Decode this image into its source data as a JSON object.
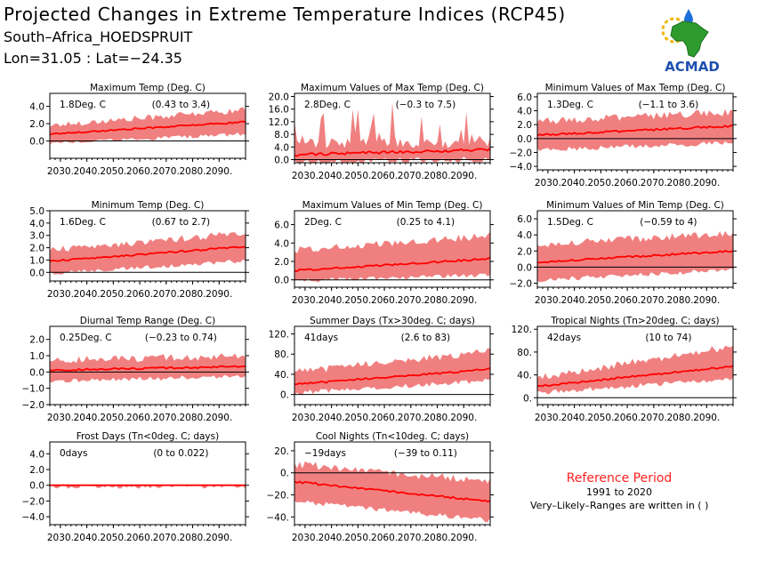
{
  "header": {
    "title": "Projected Changes in Extreme Temperature Indices (RCP45)",
    "location": "South–Africa_HOEDSPRUIT",
    "coordinates": "Lon=31.05 : Lat=−24.35"
  },
  "logo": {
    "name": "ACMAD",
    "icon": "africa-map-with-sun-and-raindrop"
  },
  "reference": {
    "title": "Reference Period",
    "years": "1991 to 2020",
    "note": "Very–Likely–Ranges are written in ( )"
  },
  "colors": {
    "band": "#f08080",
    "line": "#ff0000",
    "title_red": "#ff2020",
    "axis": "#000000"
  },
  "chart_data": [
    {
      "type": "line",
      "title": "Maximum Temp (Deg. C)",
      "value_label": "1.8Deg. C",
      "range_label": "(0.43 to 3.4)",
      "x_ticks": [
        "2030.",
        "2040.",
        "2050.",
        "2060.",
        "2070.",
        "2080.",
        "2090."
      ],
      "y_ticks": [
        "0.0",
        "2.0",
        "4.0"
      ],
      "ylim": [
        -2.0,
        5.5
      ],
      "x_range": [
        2026,
        2100
      ],
      "series": [
        {
          "type": "band",
          "x": [
            2026,
            2100
          ],
          "lower": [
            -0.2,
            0.9
          ],
          "upper": [
            1.8,
            3.6
          ]
        },
        {
          "type": "median",
          "x": [
            2026,
            2100
          ],
          "values": [
            0.8,
            2.2
          ]
        }
      ]
    },
    {
      "type": "line",
      "title": "Maximum Values of Max Temp (Deg. C)",
      "value_label": "2.8Deg. C",
      "range_label": "(−0.3 to 7.5)",
      "x_ticks": [
        "2030.",
        "2040.",
        "2050.",
        "2060.",
        "2070.",
        "2080.",
        "2090."
      ],
      "y_ticks": [
        "0.0",
        "4.0",
        "8.0",
        "12.0",
        "16.0",
        "20.0"
      ],
      "ylim": [
        -1.0,
        21.0
      ],
      "x_range": [
        2026,
        2100
      ],
      "series": [
        {
          "type": "band",
          "x": [
            2026,
            2100
          ],
          "lower": [
            -0.8,
            0.5
          ],
          "upper": [
            5.0,
            5.5
          ]
        },
        {
          "type": "median",
          "x": [
            2026,
            2100
          ],
          "values": [
            1.5,
            3.2
          ]
        }
      ]
    },
    {
      "type": "line",
      "title": "Minimum Values of Max Temp (Deg. C)",
      "value_label": "1.3Deg. C",
      "range_label": "(−1.1 to 3.6)",
      "x_ticks": [
        "2030.",
        "2040.",
        "2050.",
        "2060.",
        "2070.",
        "2080.",
        "2090."
      ],
      "y_ticks": [
        "−4.0",
        "−2.0",
        "0.0",
        "2.0",
        "4.0",
        "6.0"
      ],
      "ylim": [
        -4.5,
        6.5
      ],
      "x_range": [
        2026,
        2100
      ],
      "series": [
        {
          "type": "band",
          "x": [
            2026,
            2100
          ],
          "lower": [
            -1.5,
            -0.5
          ],
          "upper": [
            2.5,
            3.8
          ]
        },
        {
          "type": "median",
          "x": [
            2026,
            2100
          ],
          "values": [
            0.5,
            1.8
          ]
        }
      ]
    },
    {
      "type": "line",
      "title": "Minimum Temp (Deg. C)",
      "value_label": "1.6Deg. C",
      "range_label": "(0.67 to 2.7)",
      "x_ticks": [
        "2030.",
        "2040.",
        "2050.",
        "2060.",
        "2070.",
        "2080.",
        "2090."
      ],
      "y_ticks": [
        "0.0",
        "1.0",
        "2.0",
        "3.0",
        "4.0",
        "5.0"
      ],
      "ylim": [
        -0.7,
        5.0
      ],
      "x_range": [
        2026,
        2100
      ],
      "series": [
        {
          "type": "band",
          "x": [
            2026,
            2100
          ],
          "lower": [
            0.0,
            1.0
          ],
          "upper": [
            1.8,
            3.2
          ]
        },
        {
          "type": "median",
          "x": [
            2026,
            2100
          ],
          "values": [
            0.9,
            2.1
          ]
        }
      ]
    },
    {
      "type": "line",
      "title": "Maximum Values of Min Temp (Deg. C)",
      "value_label": "2Deg. C",
      "range_label": "(0.25 to 4.1)",
      "x_ticks": [
        "2030.",
        "2040.",
        "2050.",
        "2060.",
        "2070.",
        "2080.",
        "2090."
      ],
      "y_ticks": [
        "0.0",
        "2.0",
        "4.0",
        "6.0"
      ],
      "ylim": [
        -0.8,
        7.5
      ],
      "x_range": [
        2026,
        2100
      ],
      "series": [
        {
          "type": "band",
          "x": [
            2026,
            2100
          ],
          "lower": [
            0.0,
            0.6
          ],
          "upper": [
            3.2,
            4.8
          ]
        },
        {
          "type": "median",
          "x": [
            2026,
            2100
          ],
          "values": [
            1.0,
            2.3
          ]
        }
      ]
    },
    {
      "type": "line",
      "title": "Minimum Values of Min Temp (Deg. C)",
      "value_label": "1.5Deg. C",
      "range_label": "(−0.59 to 4)",
      "x_ticks": [
        "2030.",
        "2040.",
        "2050.",
        "2060.",
        "2070.",
        "2080.",
        "2090."
      ],
      "y_ticks": [
        "−2.0",
        "0.0",
        "2.0",
        "4.0",
        "6.0"
      ],
      "ylim": [
        -2.5,
        7.0
      ],
      "x_range": [
        2026,
        2100
      ],
      "series": [
        {
          "type": "band",
          "x": [
            2026,
            2100
          ],
          "lower": [
            -1.5,
            -0.2
          ],
          "upper": [
            2.8,
            4.2
          ]
        },
        {
          "type": "median",
          "x": [
            2026,
            2100
          ],
          "values": [
            0.6,
            2.0
          ]
        }
      ]
    },
    {
      "type": "line",
      "title": "Diurnal Temp Range (Deg. C)",
      "value_label": "0.25Deg. C",
      "range_label": "(−0.23 to 0.74)",
      "x_ticks": [
        "2030.",
        "2040.",
        "2050.",
        "2060.",
        "2070.",
        "2080.",
        "2090."
      ],
      "y_ticks": [
        "−2.0",
        "−1.0",
        "0.0",
        "1.0",
        "2.0"
      ],
      "ylim": [
        -2.0,
        2.8
      ],
      "x_range": [
        2026,
        2100
      ],
      "series": [
        {
          "type": "band",
          "x": [
            2026,
            2100
          ],
          "lower": [
            -0.5,
            -0.2
          ],
          "upper": [
            0.7,
            1.0
          ]
        },
        {
          "type": "median",
          "x": [
            2026,
            2100
          ],
          "values": [
            0.1,
            0.35
          ]
        }
      ]
    },
    {
      "type": "line",
      "title": "Summer Days (Tx>30deg. C; days)",
      "value_label": "41days",
      "range_label": "(2.6 to 83)",
      "x_ticks": [
        "2030.",
        "2040.",
        "2050.",
        "2060.",
        "2070.",
        "2080.",
        "2090."
      ],
      "y_ticks": [
        "0.",
        "40.",
        "80.",
        "120."
      ],
      "ylim": [
        -20,
        135
      ],
      "x_range": [
        2026,
        2100
      ],
      "series": [
        {
          "type": "band",
          "x": [
            2026,
            2100
          ],
          "lower": [
            5,
            30
          ],
          "upper": [
            45,
            85
          ]
        },
        {
          "type": "median",
          "x": [
            2026,
            2100
          ],
          "values": [
            20,
            50
          ]
        }
      ]
    },
    {
      "type": "line",
      "title": "Tropical Nights (Tn>20deg. C; days)",
      "value_label": "42days",
      "range_label": "(10 to 74)",
      "x_ticks": [
        "2030.",
        "2040.",
        "2050.",
        "2060.",
        "2070.",
        "2080.",
        "2090."
      ],
      "y_ticks": [
        "0.",
        "40.",
        "80.",
        "120."
      ],
      "ylim": [
        -12,
        125
      ],
      "x_range": [
        2026,
        2100
      ],
      "series": [
        {
          "type": "band",
          "x": [
            2026,
            2100
          ],
          "lower": [
            10,
            35
          ],
          "upper": [
            35,
            90
          ]
        },
        {
          "type": "median",
          "x": [
            2026,
            2100
          ],
          "values": [
            20,
            55
          ]
        }
      ]
    },
    {
      "type": "line",
      "title": "Frost Days (Tn<0deg. C; days)",
      "value_label": "0days",
      "range_label": "(0 to 0.022)",
      "x_ticks": [
        "2030.",
        "2040.",
        "2050.",
        "2060.",
        "2070.",
        "2080.",
        "2090."
      ],
      "y_ticks": [
        "−4.0",
        "−2.0",
        "0.0",
        "2.0",
        "4.0"
      ],
      "ylim": [
        -5.0,
        5.5
      ],
      "x_range": [
        2026,
        2100
      ],
      "series": [
        {
          "type": "band",
          "x": [
            2026,
            2100
          ],
          "lower": [
            0,
            0
          ],
          "upper": [
            0.05,
            0.05
          ]
        },
        {
          "type": "median",
          "x": [
            2026,
            2100
          ],
          "values": [
            0,
            0
          ]
        }
      ]
    },
    {
      "type": "line",
      "title": "Cool Nights (Tn<10deg. C; days)",
      "value_label": "−19days",
      "range_label": "(−39 to 0.11)",
      "x_ticks": [
        "2030.",
        "2040.",
        "2050.",
        "2060.",
        "2070.",
        "2080.",
        "2090."
      ],
      "y_ticks": [
        "−40.",
        "−20.",
        "0.",
        "20."
      ],
      "ylim": [
        -47,
        28
      ],
      "x_range": [
        2026,
        2100
      ],
      "series": [
        {
          "type": "band",
          "x": [
            2026,
            2100
          ],
          "lower": [
            -25,
            -42
          ],
          "upper": [
            8,
            -8
          ]
        },
        {
          "type": "median",
          "x": [
            2026,
            2100
          ],
          "values": [
            -8,
            -26
          ]
        }
      ]
    }
  ]
}
